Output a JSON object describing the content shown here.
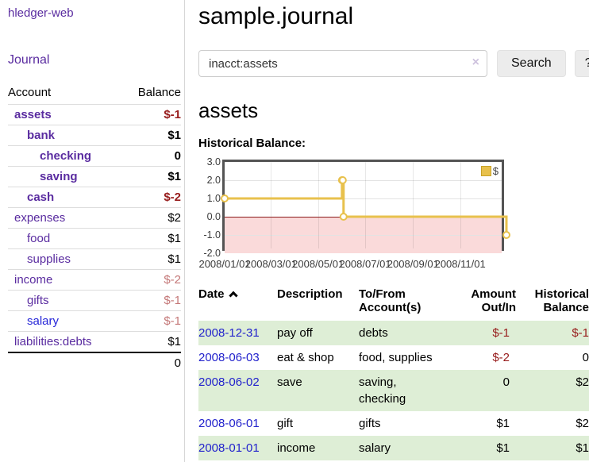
{
  "app": {
    "brand": "hledger-web",
    "nav_journal": "Journal"
  },
  "colors": {
    "link_purple": "#5a2ca0",
    "link_blue": "#2626d8",
    "date_link_blue": "#2222cc",
    "negative_dark_red": "#971c1c",
    "negative_faded_red": "#c47878",
    "row_shade_green": "#deeed6",
    "chart_line_gold": "#e8c14d",
    "chart_negative_region_pink": "#fadada",
    "chart_zero_line_red": "#8b1a1a"
  },
  "sidebar": {
    "headers": {
      "account": "Account",
      "balance": "Balance"
    },
    "accounts": [
      {
        "name": "assets",
        "depth": 1,
        "bold": true,
        "link_color": "purple",
        "balance": "$-1",
        "balance_style": "neg"
      },
      {
        "name": "bank",
        "depth": 2,
        "bold": true,
        "link_color": "purple",
        "balance": "$1",
        "balance_style": "pos"
      },
      {
        "name": "checking",
        "depth": 3,
        "bold": true,
        "link_color": "purple",
        "balance": "0",
        "balance_style": "pos"
      },
      {
        "name": "saving",
        "depth": 3,
        "bold": true,
        "link_color": "purple",
        "balance": "$1",
        "balance_style": "pos"
      },
      {
        "name": "cash",
        "depth": 2,
        "bold": true,
        "link_color": "purple",
        "balance": "$-2",
        "balance_style": "neg"
      },
      {
        "name": "expenses",
        "depth": 1,
        "bold": false,
        "link_color": "purple",
        "balance": "$2",
        "balance_style": "pos"
      },
      {
        "name": "food",
        "depth": 2,
        "bold": false,
        "link_color": "purple",
        "balance": "$1",
        "balance_style": "pos"
      },
      {
        "name": "supplies",
        "depth": 2,
        "bold": false,
        "link_color": "purple",
        "balance": "$1",
        "balance_style": "pos"
      },
      {
        "name": "income",
        "depth": 1,
        "bold": false,
        "link_color": "purple",
        "balance": "$-2",
        "balance_style": "neg-faded"
      },
      {
        "name": "gifts",
        "depth": 2,
        "bold": false,
        "link_color": "purple",
        "balance": "$-1",
        "balance_style": "neg-faded"
      },
      {
        "name": "salary",
        "depth": 2,
        "bold": false,
        "link_color": "blue",
        "balance": "$-1",
        "balance_style": "neg-faded"
      },
      {
        "name": "liabilities:debts",
        "depth": 1,
        "bold": false,
        "link_color": "purple",
        "balance": "$1",
        "balance_style": "pos"
      }
    ],
    "total": "0"
  },
  "main": {
    "title": "sample.journal",
    "search": {
      "value": "inacct:assets",
      "clear_icon": "×",
      "button": "Search",
      "help_button": "?"
    },
    "account_heading": "assets",
    "chart_label": "Historical Balance:"
  },
  "chart_data": {
    "type": "line",
    "title": "Historical Balance:",
    "step": true,
    "series": [
      {
        "name": "$",
        "points": [
          [
            "2008-01-01",
            1.0
          ],
          [
            "2008-06-01",
            2.0
          ],
          [
            "2008-06-02",
            2.0
          ],
          [
            "2008-06-03",
            0.0
          ],
          [
            "2008-12-31",
            -1.0
          ]
        ]
      }
    ],
    "x_range": [
      "2008-01-01",
      "2008-12-31"
    ],
    "ylim": [
      -2.0,
      3.0
    ],
    "y_ticks": [
      3.0,
      2.0,
      1.0,
      0.0,
      -1.0,
      -2.0
    ],
    "x_ticks": [
      "2008/01/01",
      "2008/03/01",
      "2008/05/01",
      "2008/07/01",
      "2008/09/01",
      "2008/11/01"
    ],
    "grid": true,
    "legend": {
      "label": "$",
      "position": "top-right"
    }
  },
  "transactions": {
    "headers": {
      "date": "Date",
      "description": "Description",
      "accounts_line1": "To/From",
      "accounts_line2": "Account(s)",
      "amount_line1": "Amount",
      "amount_line2": "Out/In",
      "balance_line1": "Historical",
      "balance_line2": "Balance"
    },
    "rows": [
      {
        "date": "2008-12-31",
        "description": "pay off",
        "accounts": "debts",
        "amount": "$-1",
        "amount_neg": true,
        "balance": "$-1",
        "balance_neg": true,
        "shaded": true
      },
      {
        "date": "2008-06-03",
        "description": "eat & shop",
        "accounts": "food, supplies",
        "amount": "$-2",
        "amount_neg": true,
        "balance": "0",
        "balance_neg": false,
        "shaded": false
      },
      {
        "date": "2008-06-02",
        "description": "save",
        "accounts": "saving, checking",
        "amount": "0",
        "amount_neg": false,
        "balance": "$2",
        "balance_neg": false,
        "shaded": true
      },
      {
        "date": "2008-06-01",
        "description": "gift",
        "accounts": "gifts",
        "amount": "$1",
        "amount_neg": false,
        "balance": "$2",
        "balance_neg": false,
        "shaded": false
      },
      {
        "date": "2008-01-01",
        "description": "income",
        "accounts": "salary",
        "amount": "$1",
        "amount_neg": false,
        "balance": "$1",
        "balance_neg": false,
        "shaded": true
      }
    ]
  }
}
